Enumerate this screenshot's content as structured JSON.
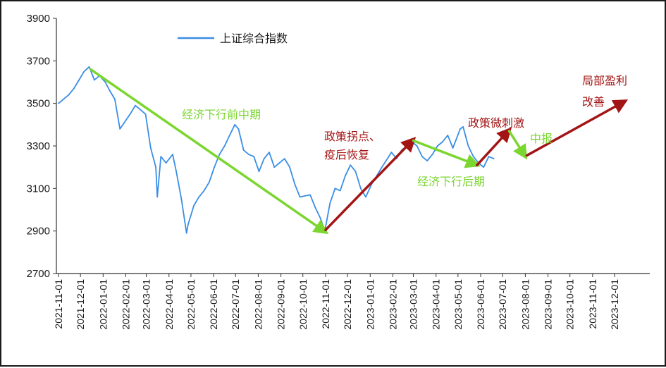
{
  "chart_data": {
    "type": "line",
    "title": "",
    "xlabel": "",
    "ylabel": "",
    "ylim": [
      2700,
      3900
    ],
    "yticks": [
      "3900",
      "3700",
      "3500",
      "3300",
      "3100",
      "2900",
      "2700"
    ],
    "xticks": [
      "2021-11-01",
      "2021-12-01",
      "2022-01-01",
      "2022-02-01",
      "2022-03-01",
      "2022-04-01",
      "2022-05-01",
      "2022-06-01",
      "2022-07-01",
      "2022-08-01",
      "2022-09-01",
      "2022-10-01",
      "2022-11-01",
      "2022-12-01",
      "2023-01-01",
      "2023-02-01",
      "2023-03-01",
      "2023-04-01",
      "2023-05-01",
      "2023-06-01",
      "2023-07-01",
      "2023-08-01",
      "2023-09-01",
      "2023-10-01",
      "2023-11-01",
      "2023-12-01"
    ],
    "grid": false,
    "legend": "top-left",
    "series": [
      {
        "name": "上证综合指数",
        "color": "#3a8ee6",
        "x": [
          "2021-11-01",
          "2021-11-08",
          "2021-11-15",
          "2021-11-22",
          "2021-11-29",
          "2021-12-06",
          "2021-12-13",
          "2021-12-20",
          "2021-12-27",
          "2022-01-04",
          "2022-01-10",
          "2022-01-17",
          "2022-01-24",
          "2022-02-07",
          "2022-02-14",
          "2022-02-21",
          "2022-02-28",
          "2022-03-07",
          "2022-03-14",
          "2022-03-16",
          "2022-03-21",
          "2022-03-28",
          "2022-04-06",
          "2022-04-11",
          "2022-04-18",
          "2022-04-25",
          "2022-04-27",
          "2022-05-05",
          "2022-05-12",
          "2022-05-19",
          "2022-05-26",
          "2022-06-02",
          "2022-06-09",
          "2022-06-16",
          "2022-06-23",
          "2022-06-30",
          "2022-07-05",
          "2022-07-12",
          "2022-07-19",
          "2022-07-26",
          "2022-08-02",
          "2022-08-09",
          "2022-08-16",
          "2022-08-23",
          "2022-08-30",
          "2022-09-06",
          "2022-09-13",
          "2022-09-20",
          "2022-09-27",
          "2022-10-11",
          "2022-10-18",
          "2022-10-25",
          "2022-10-31",
          "2022-11-07",
          "2022-11-14",
          "2022-11-21",
          "2022-11-28",
          "2022-12-05",
          "2022-12-12",
          "2022-12-19",
          "2022-12-26",
          "2023-01-03",
          "2023-01-10",
          "2023-01-17",
          "2023-01-30",
          "2023-02-06",
          "2023-02-13",
          "2023-02-20",
          "2023-02-27",
          "2023-03-06",
          "2023-03-13",
          "2023-03-20",
          "2023-03-27",
          "2023-04-03",
          "2023-04-10",
          "2023-04-17",
          "2023-04-24",
          "2023-05-04",
          "2023-05-08",
          "2023-05-15",
          "2023-05-22",
          "2023-05-29",
          "2023-06-05",
          "2023-06-12",
          "2023-06-19"
        ],
        "values": [
          3500,
          3520,
          3540,
          3570,
          3610,
          3650,
          3672,
          3610,
          3630,
          3600,
          3560,
          3520,
          3380,
          3450,
          3490,
          3470,
          3450,
          3290,
          3200,
          3060,
          3250,
          3220,
          3260,
          3180,
          3050,
          2890,
          2930,
          3020,
          3060,
          3090,
          3130,
          3200,
          3260,
          3300,
          3350,
          3400,
          3380,
          3280,
          3260,
          3250,
          3180,
          3240,
          3270,
          3200,
          3220,
          3240,
          3200,
          3120,
          3060,
          3070,
          3010,
          2960,
          2900,
          3030,
          3100,
          3090,
          3160,
          3210,
          3180,
          3100,
          3060,
          3120,
          3160,
          3200,
          3270,
          3240,
          3280,
          3300,
          3320,
          3300,
          3250,
          3230,
          3260,
          3300,
          3320,
          3350,
          3290,
          3380,
          3390,
          3300,
          3250,
          3220,
          3200,
          3250,
          3240
        ]
      }
    ],
    "annotations": [
      {
        "text": "经济下行前中期",
        "color": "#7bd630"
      },
      {
        "text": "政策拐点、",
        "color": "#a31414"
      },
      {
        "text": "疫后恢复",
        "color": "#a31414"
      },
      {
        "text": "经济下行后期",
        "color": "#7bd630"
      },
      {
        "text": "政策微刺激",
        "color": "#a31414"
      },
      {
        "text": "中报",
        "color": "#7bd630"
      },
      {
        "text": "局部盈利",
        "color": "#a31414"
      },
      {
        "text": "改善",
        "color": "#a31414"
      }
    ],
    "arrows": [
      {
        "color": "#7bd630",
        "from": [
          "2021-12-15",
          3660
        ],
        "to": [
          "2022-11-01",
          2895
        ]
      },
      {
        "color": "#a31414",
        "from": [
          "2022-11-01",
          2905
        ],
        "to": [
          "2023-03-01",
          3330
        ]
      },
      {
        "color": "#7bd630",
        "from": [
          "2023-03-01",
          3325
        ],
        "to": [
          "2023-05-27",
          3210
        ]
      },
      {
        "color": "#a31414",
        "from": [
          "2023-05-27",
          3210
        ],
        "to": [
          "2023-07-10",
          3375
        ]
      },
      {
        "color": "#7bd630",
        "from": [
          "2023-07-10",
          3370
        ],
        "to": [
          "2023-08-01",
          3250
        ]
      },
      {
        "color": "#a31414",
        "from": [
          "2023-08-03",
          3255
        ],
        "to": [
          "2023-12-15",
          3510
        ]
      }
    ]
  }
}
